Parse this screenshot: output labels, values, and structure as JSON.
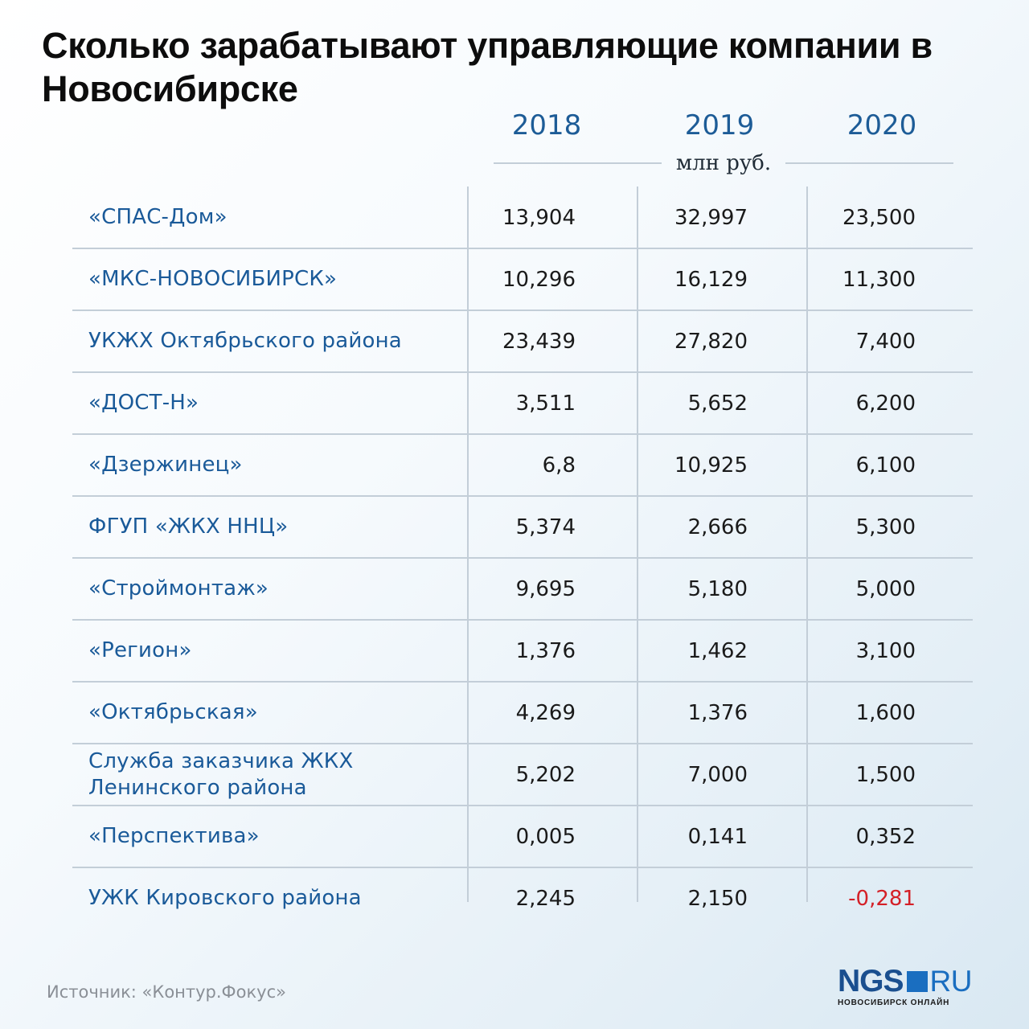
{
  "title": "Сколько зарабатывают управляющие компании в Новосибирске",
  "unit": "млн руб.",
  "source": "Источник: «Контур.Фокус»",
  "logo": {
    "main": "NGS",
    "suffix": "RU",
    "tagline": "НОВОСИБИРСК ОНЛАЙН"
  },
  "colors": {
    "accent": "#1a5a99",
    "negative": "#d42027",
    "logo_blue": "#1a6ec0"
  },
  "chart_data": {
    "type": "table",
    "title": "Сколько зарабатывают управляющие компании в Новосибирске",
    "unit": "млн руб.",
    "columns": [
      "2018",
      "2019",
      "2020"
    ],
    "rows": [
      {
        "name": "«СПАС-Дом»",
        "values": [
          "13,904",
          "32,997",
          "23,500"
        ]
      },
      {
        "name": "«МКС-НОВОСИБИРСК»",
        "values": [
          "10,296",
          "16,129",
          "11,300"
        ]
      },
      {
        "name": "УКЖХ Октябрьского района",
        "values": [
          "23,439",
          "27,820",
          "7,400"
        ]
      },
      {
        "name": "«ДОСТ-Н»",
        "values": [
          "3,511",
          "5,652",
          "6,200"
        ]
      },
      {
        "name": "«Дзержинец»",
        "values": [
          "6,8",
          "10,925",
          "6,100"
        ]
      },
      {
        "name": "ФГУП «ЖКХ ННЦ»",
        "values": [
          "5,374",
          "2,666",
          "5,300"
        ]
      },
      {
        "name": "«Строймонтаж»",
        "values": [
          "9,695",
          "5,180",
          "5,000"
        ]
      },
      {
        "name": "«Регион»",
        "values": [
          "1,376",
          "1,462",
          "3,100"
        ]
      },
      {
        "name": "«Октябрьская»",
        "values": [
          "4,269",
          "1,376",
          "1,600"
        ]
      },
      {
        "name": "Служба заказчика ЖКХ Ленинского района",
        "values": [
          "5,202",
          "7,000",
          "1,500"
        ]
      },
      {
        "name": "«Перспектива»",
        "values": [
          "0,005",
          "0,141",
          "0,352"
        ]
      },
      {
        "name": "УЖК Кировского района",
        "values": [
          "2,245",
          "2,150",
          "-0,281"
        ]
      }
    ]
  }
}
